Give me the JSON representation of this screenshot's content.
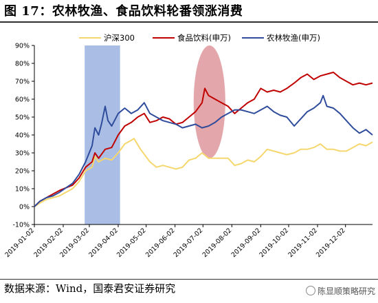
{
  "page": {
    "figure_title": "图 17：农林牧渔、食品饮料轮番领涨消费",
    "source": "数据来源：Wind，国泰君安证券研究",
    "watermark": "陈显顺策略研究"
  },
  "chart_data": {
    "type": "line",
    "title": "",
    "xlabel": "",
    "ylabel": "",
    "ylim": [
      -10,
      90
    ],
    "yticks": [
      "-10%",
      "0%",
      "10%",
      "20%",
      "30%",
      "40%",
      "50%",
      "60%",
      "70%",
      "80%",
      "90%"
    ],
    "xlim": [
      "2019-01-02",
      "2019-12-31"
    ],
    "xticks": [
      "2019-01-02",
      "2019-02-02",
      "2019-03-02",
      "2019-04-02",
      "2019-05-02",
      "2019-06-02",
      "2019-07-02",
      "2019-08-02",
      "2019-09-02",
      "2019-10-02",
      "2019-11-02",
      "2019-12-02"
    ],
    "grid": false,
    "legend_position": "top",
    "highlights": [
      {
        "shape": "rectangle",
        "from": "2019-02-25",
        "to": "2019-04-04",
        "color": "#8EA8DC"
      },
      {
        "shape": "ellipse",
        "from": "2019-06-22",
        "to": "2019-07-26",
        "y_from": 27,
        "y_to": 90,
        "color": "#D9888D"
      }
    ],
    "series": [
      {
        "name": "沪深300",
        "color": "#F5D76E",
        "points": [
          [
            "2019-01-02",
            0
          ],
          [
            "2019-01-08",
            2
          ],
          [
            "2019-01-15",
            4
          ],
          [
            "2019-01-22",
            5
          ],
          [
            "2019-01-29",
            6
          ],
          [
            "2019-02-12",
            10
          ],
          [
            "2019-02-19",
            14
          ],
          [
            "2019-02-26",
            20
          ],
          [
            "2019-03-05",
            22
          ],
          [
            "2019-03-08",
            28
          ],
          [
            "2019-03-12",
            25
          ],
          [
            "2019-03-19",
            27
          ],
          [
            "2019-03-26",
            26
          ],
          [
            "2019-04-02",
            30
          ],
          [
            "2019-04-09",
            35
          ],
          [
            "2019-04-16",
            37
          ],
          [
            "2019-04-19",
            38
          ],
          [
            "2019-04-26",
            32
          ],
          [
            "2019-05-06",
            25
          ],
          [
            "2019-05-13",
            22
          ],
          [
            "2019-05-20",
            23
          ],
          [
            "2019-05-27",
            22
          ],
          [
            "2019-06-03",
            21
          ],
          [
            "2019-06-10",
            22
          ],
          [
            "2019-06-17",
            26
          ],
          [
            "2019-06-24",
            27
          ],
          [
            "2019-07-01",
            30
          ],
          [
            "2019-07-08",
            27
          ],
          [
            "2019-07-15",
            27
          ],
          [
            "2019-07-22",
            27
          ],
          [
            "2019-07-29",
            27
          ],
          [
            "2019-08-05",
            23
          ],
          [
            "2019-08-12",
            24
          ],
          [
            "2019-08-19",
            26
          ],
          [
            "2019-08-26",
            25
          ],
          [
            "2019-09-02",
            28
          ],
          [
            "2019-09-09",
            32
          ],
          [
            "2019-09-16",
            31
          ],
          [
            "2019-09-23",
            30
          ],
          [
            "2019-09-30",
            29
          ],
          [
            "2019-10-08",
            30
          ],
          [
            "2019-10-15",
            32
          ],
          [
            "2019-10-22",
            32
          ],
          [
            "2019-10-29",
            33
          ],
          [
            "2019-11-05",
            35
          ],
          [
            "2019-11-12",
            32
          ],
          [
            "2019-11-19",
            32
          ],
          [
            "2019-11-26",
            31
          ],
          [
            "2019-12-03",
            31
          ],
          [
            "2019-12-10",
            33
          ],
          [
            "2019-12-17",
            35
          ],
          [
            "2019-12-24",
            34
          ],
          [
            "2019-12-31",
            36
          ]
        ]
      },
      {
        "name": "食品饮料(申万)",
        "color": "#C00000",
        "points": [
          [
            "2019-01-02",
            0
          ],
          [
            "2019-01-08",
            3
          ],
          [
            "2019-01-15",
            5
          ],
          [
            "2019-01-22",
            7
          ],
          [
            "2019-01-29",
            9
          ],
          [
            "2019-02-12",
            12
          ],
          [
            "2019-02-19",
            16
          ],
          [
            "2019-02-26",
            22
          ],
          [
            "2019-03-05",
            25
          ],
          [
            "2019-03-08",
            30
          ],
          [
            "2019-03-12",
            27
          ],
          [
            "2019-03-19",
            32
          ],
          [
            "2019-03-26",
            33
          ],
          [
            "2019-04-02",
            40
          ],
          [
            "2019-04-09",
            45
          ],
          [
            "2019-04-16",
            47
          ],
          [
            "2019-04-23",
            50
          ],
          [
            "2019-04-30",
            52
          ],
          [
            "2019-05-06",
            47
          ],
          [
            "2019-05-13",
            48
          ],
          [
            "2019-05-20",
            50
          ],
          [
            "2019-05-27",
            49
          ],
          [
            "2019-06-03",
            46
          ],
          [
            "2019-06-10",
            47
          ],
          [
            "2019-06-17",
            50
          ],
          [
            "2019-06-24",
            53
          ],
          [
            "2019-07-01",
            58
          ],
          [
            "2019-07-04",
            66
          ],
          [
            "2019-07-08",
            62
          ],
          [
            "2019-07-15",
            60
          ],
          [
            "2019-07-22",
            58
          ],
          [
            "2019-07-29",
            56
          ],
          [
            "2019-08-05",
            52
          ],
          [
            "2019-08-12",
            55
          ],
          [
            "2019-08-19",
            58
          ],
          [
            "2019-08-26",
            60
          ],
          [
            "2019-09-02",
            66
          ],
          [
            "2019-09-09",
            64
          ],
          [
            "2019-09-16",
            65
          ],
          [
            "2019-09-23",
            64
          ],
          [
            "2019-09-30",
            66
          ],
          [
            "2019-10-08",
            69
          ],
          [
            "2019-10-15",
            72
          ],
          [
            "2019-10-22",
            74
          ],
          [
            "2019-10-29",
            71
          ],
          [
            "2019-11-05",
            73
          ],
          [
            "2019-11-12",
            74
          ],
          [
            "2019-11-19",
            75
          ],
          [
            "2019-11-26",
            72
          ],
          [
            "2019-12-03",
            70
          ],
          [
            "2019-12-10",
            68
          ],
          [
            "2019-12-17",
            69
          ],
          [
            "2019-12-24",
            68
          ],
          [
            "2019-12-31",
            69
          ]
        ]
      },
      {
        "name": "农林牧渔(申万)",
        "color": "#2F4C9C",
        "points": [
          [
            "2019-01-02",
            0
          ],
          [
            "2019-01-08",
            3
          ],
          [
            "2019-01-15",
            5
          ],
          [
            "2019-01-22",
            6
          ],
          [
            "2019-01-29",
            8
          ],
          [
            "2019-02-12",
            13
          ],
          [
            "2019-02-19",
            18
          ],
          [
            "2019-02-26",
            25
          ],
          [
            "2019-03-05",
            34
          ],
          [
            "2019-03-08",
            44
          ],
          [
            "2019-03-12",
            40
          ],
          [
            "2019-03-15",
            46
          ],
          [
            "2019-03-19",
            56
          ],
          [
            "2019-03-22",
            48
          ],
          [
            "2019-03-26",
            45
          ],
          [
            "2019-04-02",
            52
          ],
          [
            "2019-04-09",
            55
          ],
          [
            "2019-04-16",
            52
          ],
          [
            "2019-04-23",
            54
          ],
          [
            "2019-04-30",
            58
          ],
          [
            "2019-05-06",
            52
          ],
          [
            "2019-05-13",
            50
          ],
          [
            "2019-05-20",
            48
          ],
          [
            "2019-05-27",
            47
          ],
          [
            "2019-06-03",
            46
          ],
          [
            "2019-06-10",
            44
          ],
          [
            "2019-06-17",
            45
          ],
          [
            "2019-06-24",
            46
          ],
          [
            "2019-07-01",
            44
          ],
          [
            "2019-07-08",
            45
          ],
          [
            "2019-07-15",
            47
          ],
          [
            "2019-07-22",
            50
          ],
          [
            "2019-07-29",
            52
          ],
          [
            "2019-08-05",
            54
          ],
          [
            "2019-08-12",
            54
          ],
          [
            "2019-08-19",
            53
          ],
          [
            "2019-08-26",
            52
          ],
          [
            "2019-09-02",
            54
          ],
          [
            "2019-09-09",
            56
          ],
          [
            "2019-09-16",
            53
          ],
          [
            "2019-09-23",
            51
          ],
          [
            "2019-09-30",
            50
          ],
          [
            "2019-10-08",
            45
          ],
          [
            "2019-10-15",
            49
          ],
          [
            "2019-10-22",
            53
          ],
          [
            "2019-10-29",
            55
          ],
          [
            "2019-11-05",
            58
          ],
          [
            "2019-11-08",
            62
          ],
          [
            "2019-11-12",
            56
          ],
          [
            "2019-11-19",
            55
          ],
          [
            "2019-11-26",
            52
          ],
          [
            "2019-12-03",
            48
          ],
          [
            "2019-12-10",
            44
          ],
          [
            "2019-12-17",
            41
          ],
          [
            "2019-12-24",
            43
          ],
          [
            "2019-12-31",
            40
          ]
        ]
      }
    ]
  }
}
